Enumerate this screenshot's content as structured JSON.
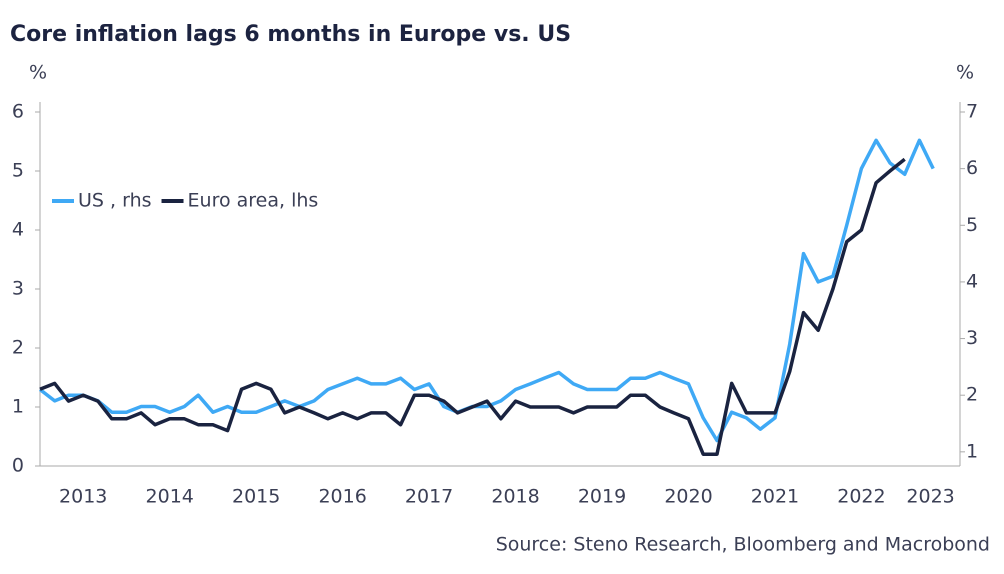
{
  "chart_data": {
    "type": "line",
    "title": "Core inflation lags 6 months in Europe vs. US",
    "ylabel": "%",
    "y2label": "%",
    "source": "Source: Steno Research, Bloomberg and Macrobond",
    "legend": "upper left",
    "x": [
      2013,
      2013.17,
      2013.33,
      2013.5,
      2013.67,
      2013.83,
      2014,
      2014.17,
      2014.33,
      2014.5,
      2014.67,
      2014.83,
      2015,
      2015.17,
      2015.33,
      2015.5,
      2015.67,
      2015.83,
      2016,
      2016.17,
      2016.33,
      2016.5,
      2016.67,
      2016.83,
      2017,
      2017.17,
      2017.33,
      2017.5,
      2017.67,
      2017.83,
      2018,
      2018.17,
      2018.33,
      2018.5,
      2018.67,
      2018.83,
      2019,
      2019.17,
      2019.33,
      2019.5,
      2019.67,
      2019.83,
      2020,
      2020.17,
      2020.33,
      2020.5,
      2020.67,
      2020.83,
      2021,
      2021.17,
      2021.33,
      2021.5,
      2021.67,
      2021.83,
      2022,
      2022.17,
      2022.33,
      2022.5,
      2022.67,
      2022.83,
      2023,
      2023.17,
      2023.33
    ],
    "xlim": [
      2013,
      2023.64
    ],
    "xticks": [
      {
        "value": 2013.5,
        "label": "2013"
      },
      {
        "value": 2014.5,
        "label": "2014"
      },
      {
        "value": 2015.5,
        "label": "2015"
      },
      {
        "value": 2016.5,
        "label": "2016"
      },
      {
        "value": 2017.5,
        "label": "2017"
      },
      {
        "value": 2018.5,
        "label": "2018"
      },
      {
        "value": 2019.5,
        "label": "2019"
      },
      {
        "value": 2020.5,
        "label": "2020"
      },
      {
        "value": 2021.5,
        "label": "2021"
      },
      {
        "value": 2022.5,
        "label": "2022"
      },
      {
        "value": 2023.3,
        "label": "2023"
      }
    ],
    "ylim": [
      0,
      6
    ],
    "yticks": [
      0,
      1,
      2,
      3,
      4,
      5,
      6
    ],
    "y2lim": [
      0.75,
      7
    ],
    "y2ticks": [
      1,
      2,
      3,
      4,
      5,
      6,
      7
    ],
    "series": [
      {
        "name": "US , rhs",
        "color": "#3fa9f5",
        "axis": "y2",
        "values": [
          2.1,
          1.9,
          2.0,
          2.0,
          1.9,
          1.7,
          1.7,
          1.8,
          1.8,
          1.7,
          1.8,
          2.0,
          1.7,
          1.8,
          1.7,
          1.7,
          1.8,
          1.9,
          1.8,
          1.9,
          2.1,
          2.2,
          2.3,
          2.2,
          2.2,
          2.3,
          2.1,
          2.2,
          1.8,
          1.7,
          1.8,
          1.8,
          1.9,
          2.1,
          2.2,
          2.3,
          2.4,
          2.2,
          2.1,
          2.1,
          2.1,
          2.3,
          2.3,
          2.4,
          2.3,
          2.2,
          1.6,
          1.2,
          1.7,
          1.6,
          1.4,
          1.6,
          2.9,
          4.5,
          4.0,
          4.1,
          5.0,
          6.0,
          6.5,
          6.1,
          5.9,
          6.5,
          6.0
        ]
      },
      {
        "name": "Euro area, lhs",
        "color": "#1a2340",
        "values": [
          1.3,
          1.4,
          1.1,
          1.2,
          1.1,
          0.8,
          0.8,
          0.9,
          0.7,
          0.8,
          0.8,
          0.7,
          0.7,
          0.6,
          1.3,
          1.4,
          1.3,
          0.9,
          1.0,
          0.9,
          0.8,
          0.9,
          0.8,
          0.9,
          0.9,
          0.7,
          1.2,
          1.2,
          1.1,
          0.9,
          1.0,
          1.1,
          0.8,
          1.1,
          1.0,
          1.0,
          1.0,
          0.9,
          1.0,
          1.0,
          1.0,
          1.2,
          1.2,
          1.0,
          0.9,
          0.8,
          0.2,
          0.2,
          1.4,
          0.9,
          0.9,
          0.9,
          1.6,
          2.6,
          2.3,
          3.0,
          3.8,
          4.0,
          4.8,
          5.0,
          5.2,
          null,
          null
        ]
      }
    ]
  }
}
